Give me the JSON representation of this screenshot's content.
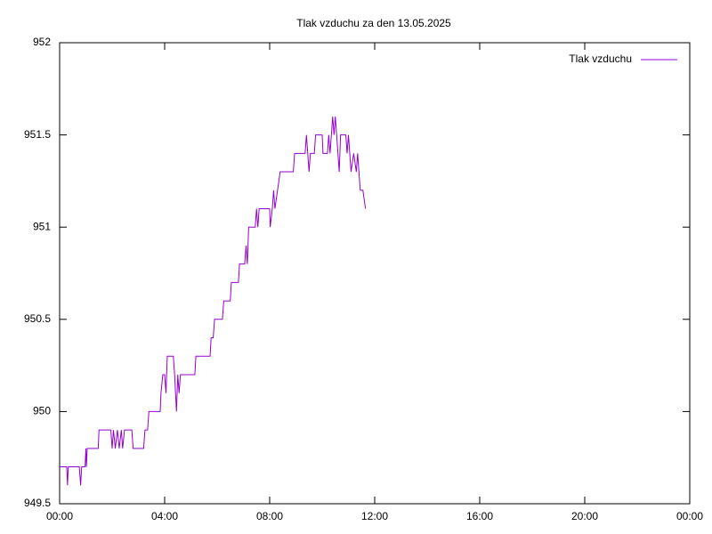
{
  "chart_data": {
    "type": "line",
    "title": "Tlak vzduchu za den 13.05.2025",
    "x": [
      0,
      0.27,
      0.3,
      0.33,
      0.75,
      0.8,
      0.84,
      0.97,
      1.0,
      1.02,
      1.05,
      1.47,
      1.5,
      1.95,
      2.0,
      2.05,
      2.12,
      2.2,
      2.27,
      2.35,
      2.4,
      2.47,
      2.75,
      2.8,
      3.2,
      3.25,
      3.35,
      3.4,
      3.83,
      3.86,
      3.93,
      4.0,
      4.05,
      4.1,
      4.33,
      4.38,
      4.45,
      4.5,
      4.55,
      4.6,
      5.15,
      5.19,
      5.73,
      5.77,
      5.85,
      5.9,
      6.2,
      6.25,
      6.5,
      6.54,
      6.81,
      6.85,
      7.05,
      7.1,
      7.15,
      7.2,
      7.45,
      7.5,
      7.55,
      7.6,
      8.0,
      8.02,
      8.1,
      8.15,
      8.2,
      8.3,
      8.4,
      8.9,
      8.95,
      9.35,
      9.4,
      9.45,
      9.5,
      9.55,
      9.7,
      9.75,
      10.0,
      10.03,
      10.2,
      10.25,
      10.3,
      10.35,
      10.4,
      10.45,
      10.5,
      10.55,
      10.6,
      10.65,
      10.7,
      10.9,
      10.95,
      11.0,
      11.05,
      11.1,
      11.2,
      11.3,
      11.35,
      11.45,
      11.55,
      11.65
    ],
    "series": [
      {
        "name": "Tlak vzduchu",
        "color": "#9400d3",
        "values": [
          949.7,
          949.7,
          949.6,
          949.7,
          949.7,
          949.6,
          949.7,
          949.7,
          949.8,
          949.7,
          949.8,
          949.8,
          949.9,
          949.9,
          949.8,
          949.9,
          949.8,
          949.9,
          949.8,
          949.9,
          949.8,
          949.9,
          949.9,
          949.8,
          949.8,
          949.9,
          949.9,
          950.0,
          950.0,
          950.1,
          950.2,
          950.2,
          950.1,
          950.3,
          950.3,
          950.2,
          950.0,
          950.2,
          950.1,
          950.2,
          950.2,
          950.3,
          950.3,
          950.4,
          950.4,
          950.5,
          950.5,
          950.6,
          950.6,
          950.7,
          950.7,
          950.8,
          950.8,
          950.9,
          950.8,
          951.0,
          951.0,
          951.1,
          951.0,
          951.1,
          951.1,
          951.0,
          951.1,
          951.2,
          951.1,
          951.2,
          951.3,
          951.3,
          951.4,
          951.4,
          951.5,
          951.4,
          951.3,
          951.4,
          951.4,
          951.5,
          951.5,
          951.4,
          951.4,
          951.5,
          951.4,
          951.5,
          951.6,
          951.5,
          951.6,
          951.5,
          951.4,
          951.3,
          951.5,
          951.5,
          951.4,
          951.5,
          951.4,
          951.3,
          951.4,
          951.3,
          951.4,
          951.2,
          951.2,
          951.1
        ]
      }
    ],
    "xlim": [
      0,
      24
    ],
    "xticks": [
      {
        "value": 0,
        "label": "00:00"
      },
      {
        "value": 4,
        "label": "04:00"
      },
      {
        "value": 8,
        "label": "08:00"
      },
      {
        "value": 12,
        "label": "12:00"
      },
      {
        "value": 16,
        "label": "16:00"
      },
      {
        "value": 20,
        "label": "20:00"
      },
      {
        "value": 24,
        "label": "00:00"
      }
    ],
    "ylim": [
      949.5,
      952
    ],
    "yticks": [
      949.5,
      950,
      950.5,
      951,
      951.5,
      952
    ],
    "legend": "top-right"
  }
}
